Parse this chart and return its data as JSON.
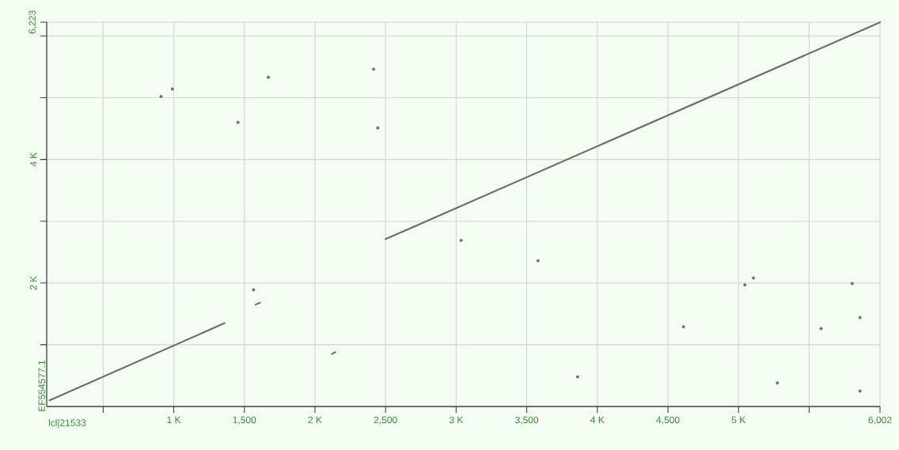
{
  "chart_data": {
    "type": "line",
    "xlabel": "lcl|21533",
    "ylabel": "EF554577.1",
    "xlim": [
      100,
      6002
    ],
    "ylim": [
      0,
      6223
    ],
    "grid": true,
    "xticks": [
      {
        "value": 500,
        "label": null
      },
      {
        "value": 1000,
        "label": "1 K"
      },
      {
        "value": 1500,
        "label": "1,500"
      },
      {
        "value": 2000,
        "label": "2 K"
      },
      {
        "value": 2500,
        "label": "2,500"
      },
      {
        "value": 3000,
        "label": "3 K"
      },
      {
        "value": 3500,
        "label": "3,500"
      },
      {
        "value": 4000,
        "label": "4 K"
      },
      {
        "value": 4500,
        "label": "4,500"
      },
      {
        "value": 5000,
        "label": "5 K"
      },
      {
        "value": 5500,
        "label": null
      },
      {
        "value": 6002,
        "label": "6,002"
      }
    ],
    "yticks": [
      {
        "value": 1000,
        "label": null
      },
      {
        "value": 2000,
        "label": "2 K"
      },
      {
        "value": 3000,
        "label": null
      },
      {
        "value": 4000,
        "label": "4 K"
      },
      {
        "value": 5000,
        "label": null
      },
      {
        "value": 6000,
        "label": null
      },
      {
        "value": 6223,
        "label": "6,223"
      }
    ],
    "series": [
      {
        "color": "#6e6e6e",
        "x": [
          120,
          1360
        ],
        "values": [
          100,
          1350
        ]
      },
      {
        "color": "#6e6e6e",
        "x": [
          2500,
          6002
        ],
        "values": [
          2710,
          6220
        ]
      },
      {
        "color": "#6e6e6e",
        "x": [
          1580,
          1610
        ],
        "values": [
          1650,
          1680
        ]
      },
      {
        "color": "#6e6e6e",
        "x": [
          2120,
          2145
        ],
        "values": [
          850,
          880
        ]
      },
      {
        "type": "scatter",
        "color": "#6e6e6e",
        "x": [
          910,
          990,
          1455,
          1670,
          2415,
          2445,
          1565,
          3035,
          3580,
          3860,
          4610,
          5045,
          5105,
          5275,
          5585,
          5805,
          5860,
          5860
        ],
        "values": [
          5020,
          5140,
          4600,
          5330,
          5460,
          4510,
          1890,
          2690,
          2360,
          480,
          1290,
          1970,
          2080,
          380,
          1260,
          1990,
          1440,
          250
        ]
      }
    ]
  }
}
